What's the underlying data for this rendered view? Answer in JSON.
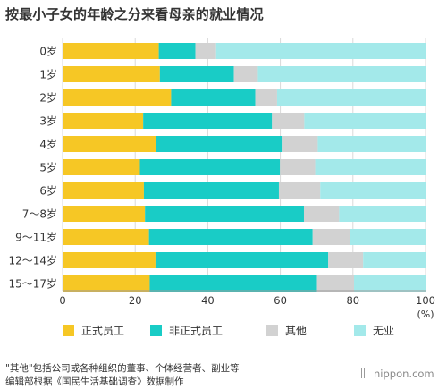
{
  "chart_data": {
    "type": "bar",
    "orientation": "horizontal",
    "stacked": true,
    "title": "按最小子女的年龄之分来看母亲的就业情况",
    "categories": [
      "0岁",
      "1岁",
      "2岁",
      "3岁",
      "4岁",
      "5岁",
      "6岁",
      "7～8岁",
      "9～11岁",
      "12～14岁",
      "15～17岁"
    ],
    "series": [
      {
        "name": "正式员工",
        "color": "#f6c725",
        "values": [
          26.5,
          26.8,
          29.9,
          22.2,
          25.8,
          21.3,
          22.4,
          22.7,
          23.8,
          25.6,
          24.0
        ]
      },
      {
        "name": "非正式员工",
        "color": "#19ccc6",
        "values": [
          10.1,
          20.4,
          23.2,
          35.5,
          34.6,
          38.6,
          37.2,
          43.8,
          45.1,
          47.6,
          46.1
        ]
      },
      {
        "name": "其他",
        "color": "#d2d2d2",
        "values": [
          5.7,
          6.6,
          6.0,
          8.9,
          9.9,
          9.7,
          11.4,
          9.7,
          10.2,
          9.6,
          10.2
        ]
      },
      {
        "name": "无业",
        "color": "#a3e9ea",
        "values": [
          57.7,
          46.2,
          40.9,
          33.4,
          29.7,
          30.4,
          29.0,
          23.8,
          20.9,
          17.2,
          19.7
        ]
      }
    ],
    "xlim": [
      0,
      100
    ],
    "ticks": [
      0,
      20,
      40,
      60,
      80,
      100
    ],
    "unit": "(%)",
    "grid": true,
    "legend_position": "bottom"
  },
  "footnotes": [
    "\"其他\"包括公司或各种组织的董事、个体经营者、副业等",
    "编辑部根据《国民生活基础调查》数据制作"
  ],
  "brand": {
    "text": "nippon.com"
  }
}
